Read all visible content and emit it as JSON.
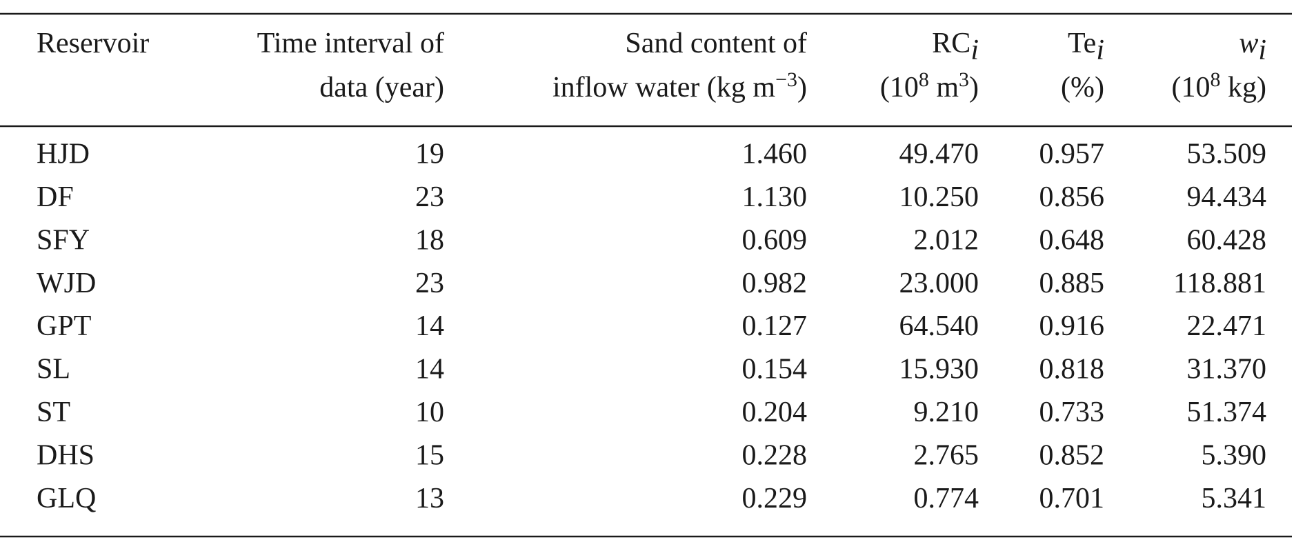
{
  "table": {
    "header": [
      [
        [
          "Reservoir"
        ]
      ],
      [
        [
          "Time interval of"
        ],
        [
          "data (year)"
        ]
      ],
      [
        [
          "Sand content of"
        ],
        [
          "inflow water (kg m",
          "−3",
          ")"
        ]
      ],
      [
        [
          "RC",
          "i"
        ],
        [
          "(10",
          "8",
          " m",
          "3",
          ")"
        ]
      ],
      [
        [
          "Te",
          "i"
        ],
        [
          "(%)"
        ]
      ],
      [
        [
          "w",
          "i"
        ],
        [
          "(10",
          "8",
          " kg)"
        ]
      ]
    ],
    "rows": [
      [
        "HJD",
        "19",
        "1.460",
        "49.470",
        "0.957",
        "53.509"
      ],
      [
        "DF",
        "23",
        "1.130",
        "10.250",
        "0.856",
        "94.434"
      ],
      [
        "SFY",
        "18",
        "0.609",
        "2.012",
        "0.648",
        "60.428"
      ],
      [
        "WJD",
        "23",
        "0.982",
        "23.000",
        "0.885",
        "118.881"
      ],
      [
        "GPT",
        "14",
        "0.127",
        "64.540",
        "0.916",
        "22.471"
      ],
      [
        "SL",
        "14",
        "0.154",
        "15.930",
        "0.818",
        "31.370"
      ],
      [
        "ST",
        "10",
        "0.204",
        "9.210",
        "0.733",
        "51.374"
      ],
      [
        "DHS",
        "15",
        "0.228",
        "2.765",
        "0.852",
        "5.390"
      ],
      [
        "GLQ",
        "13",
        "0.229",
        "0.774",
        "0.701",
        "5.341"
      ]
    ]
  }
}
